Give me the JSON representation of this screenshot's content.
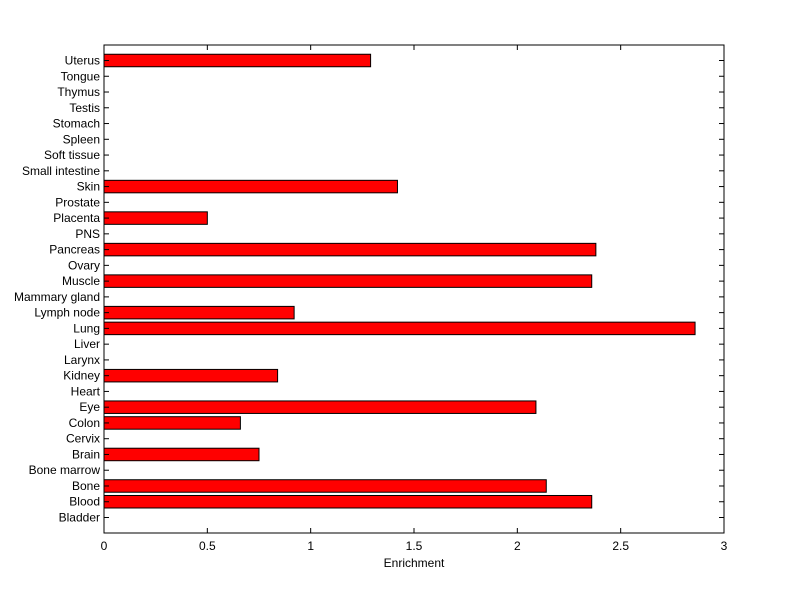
{
  "chart_data": {
    "type": "bar",
    "orientation": "horizontal",
    "title": "",
    "xlabel": "Enrichment",
    "ylabel": "",
    "xlim": [
      0,
      3
    ],
    "xticks": [
      0,
      0.5,
      1,
      1.5,
      2,
      2.5,
      3
    ],
    "xtick_labels": [
      "0",
      "0.5",
      "1",
      "1.5",
      "2",
      "2.5",
      "3"
    ],
    "grid": false,
    "legend": "none",
    "bar_color": "#ff0000",
    "bar_edge_color": "#000000",
    "categories": [
      "Bladder",
      "Blood",
      "Bone",
      "Bone marrow",
      "Brain",
      "Cervix",
      "Colon",
      "Eye",
      "Heart",
      "Kidney",
      "Larynx",
      "Liver",
      "Lung",
      "Lymph node",
      "Mammary gland",
      "Muscle",
      "Ovary",
      "Pancreas",
      "PNS",
      "Placenta",
      "Prostate",
      "Skin",
      "Small intestine",
      "Soft tissue",
      "Spleen",
      "Stomach",
      "Testis",
      "Thymus",
      "Tongue",
      "Uterus"
    ],
    "values": [
      0,
      2.36,
      2.14,
      0,
      0.75,
      0,
      0.66,
      2.09,
      0,
      0.84,
      0,
      0,
      2.86,
      0.92,
      0,
      2.36,
      0,
      2.38,
      0,
      0.5,
      0,
      1.42,
      0,
      0,
      0,
      0,
      0,
      0,
      0,
      1.29
    ]
  }
}
